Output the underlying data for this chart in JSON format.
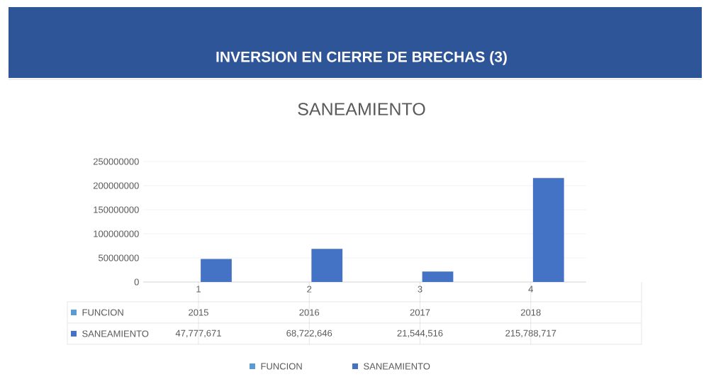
{
  "chart_data": {
    "type": "bar",
    "title": "INVERSION EN CIERRE DE BRECHAS (3)",
    "subtitle": "SANEAMIENTO",
    "categories": [
      "1",
      "2",
      "3",
      "4"
    ],
    "series": [
      {
        "name": "FUNCION",
        "color": "#5b9bd5",
        "values": [
          2015,
          2016,
          2017,
          2018
        ],
        "value_labels": [
          "2015",
          "2016",
          "2017",
          "2018"
        ]
      },
      {
        "name": "SANEAMIENTO",
        "color": "#4472c4",
        "values": [
          47777671,
          68722646,
          21544516,
          215788717
        ],
        "value_labels": [
          "47,777,671",
          "68,722,646",
          "21,544,516",
          "215,788,717"
        ]
      }
    ],
    "ylim": [
      0,
      250000000
    ],
    "yticks": [
      0,
      50000000,
      100000000,
      150000000,
      200000000,
      250000000
    ],
    "grid": "y",
    "legend": "bottom"
  }
}
